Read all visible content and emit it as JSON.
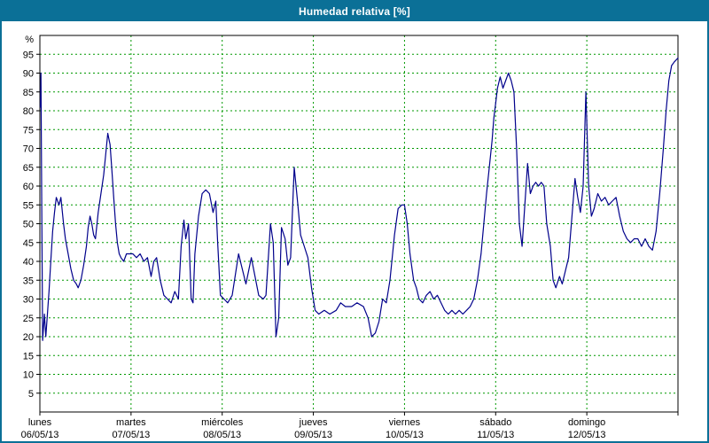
{
  "window": {
    "title": "Humedad relativa [%]"
  },
  "colors": {
    "header_bg": "#0b7097",
    "header_fg": "#ffffff",
    "frame": "#000000",
    "grid": "#009900",
    "line": "#00008b",
    "tick_text": "#000000",
    "plot_bg": "#ffffff"
  },
  "chart_data": {
    "type": "line",
    "title": "Humedad relativa [%]",
    "ylabel": "%",
    "ylim": [
      0,
      100
    ],
    "yticks": [
      5,
      10,
      15,
      20,
      25,
      30,
      35,
      40,
      45,
      50,
      55,
      60,
      65,
      70,
      75,
      80,
      85,
      90,
      95
    ],
    "grid": "dashed-green",
    "legend": "none",
    "days": [
      {
        "name": "lunes",
        "date": "06/05/13"
      },
      {
        "name": "martes",
        "date": "07/05/13"
      },
      {
        "name": "miércoles",
        "date": "08/05/13"
      },
      {
        "name": "jueves",
        "date": "09/05/13"
      },
      {
        "name": "viernes",
        "date": "10/05/13"
      },
      {
        "name": "sábado",
        "date": "11/05/13"
      },
      {
        "name": "domingo",
        "date": "12/05/13"
      }
    ],
    "series": [
      {
        "name": "Humedad relativa",
        "color": "#00008b",
        "x_days": [
          0.005,
          0.012,
          0.02,
          0.03,
          0.05,
          0.065,
          0.08,
          0.1,
          0.12,
          0.14,
          0.16,
          0.18,
          0.21,
          0.23,
          0.26,
          0.28,
          0.31,
          0.34,
          0.37,
          0.4,
          0.42,
          0.45,
          0.48,
          0.51,
          0.53,
          0.55,
          0.57,
          0.59,
          0.61,
          0.64,
          0.67,
          0.7,
          0.72,
          0.745,
          0.77,
          0.79,
          0.81,
          0.83,
          0.85,
          0.87,
          0.89,
          0.92,
          0.95,
          0.98,
          1.02,
          1.06,
          1.1,
          1.14,
          1.18,
          1.22,
          1.25,
          1.28,
          1.32,
          1.36,
          1.4,
          1.44,
          1.48,
          1.52,
          1.55,
          1.58,
          1.6,
          1.63,
          1.66,
          1.68,
          1.7,
          1.74,
          1.78,
          1.82,
          1.86,
          1.9,
          1.93,
          1.95,
          1.98,
          2.02,
          2.06,
          2.11,
          2.18,
          2.26,
          2.32,
          2.4,
          2.45,
          2.48,
          2.53,
          2.56,
          2.59,
          2.62,
          2.65,
          2.69,
          2.72,
          2.75,
          2.79,
          2.83,
          2.86,
          2.9,
          2.94,
          2.98,
          3.02,
          3.06,
          3.12,
          3.18,
          3.25,
          3.3,
          3.35,
          3.42,
          3.48,
          3.55,
          3.6,
          3.64,
          3.68,
          3.72,
          3.76,
          3.8,
          3.84,
          3.89,
          3.93,
          3.97,
          4.0,
          4.03,
          4.06,
          4.1,
          4.13,
          4.16,
          4.2,
          4.24,
          4.28,
          4.32,
          4.36,
          4.4,
          4.44,
          4.48,
          4.52,
          4.56,
          4.6,
          4.64,
          4.68,
          4.72,
          4.76,
          4.8,
          4.84,
          4.87,
          4.9,
          4.93,
          4.96,
          4.98,
          5.0,
          5.02,
          5.05,
          5.08,
          5.11,
          5.14,
          5.17,
          5.2,
          5.23,
          5.26,
          5.29,
          5.32,
          5.35,
          5.38,
          5.41,
          5.44,
          5.47,
          5.5,
          5.53,
          5.56,
          5.6,
          5.63,
          5.66,
          5.7,
          5.73,
          5.77,
          5.8,
          5.83,
          5.87,
          5.9,
          5.93,
          5.96,
          5.99,
          6.02,
          6.05,
          6.08,
          6.12,
          6.16,
          6.2,
          6.24,
          6.28,
          6.32,
          6.36,
          6.4,
          6.44,
          6.48,
          6.52,
          6.56,
          6.6,
          6.64,
          6.68,
          6.72,
          6.76,
          6.8,
          6.84,
          6.87,
          6.9,
          6.93,
          6.96,
          7.0
        ],
        "y": [
          81,
          90,
          55,
          19,
          26,
          20,
          25,
          32,
          40,
          48,
          53,
          57,
          55,
          57,
          50,
          46,
          42,
          38,
          35,
          34,
          33,
          35,
          39,
          44,
          49,
          52,
          50,
          47,
          46,
          53,
          58,
          63,
          68,
          74,
          71,
          64,
          57,
          50,
          45,
          42,
          41,
          40,
          42,
          42,
          42,
          41,
          42,
          40,
          41,
          36,
          40,
          41,
          35,
          31,
          30,
          29,
          32,
          30,
          44,
          51,
          46,
          50,
          30,
          29,
          42,
          52,
          58,
          59,
          58,
          53,
          56,
          45,
          31,
          30,
          29,
          31,
          42,
          34,
          41,
          31,
          30,
          31,
          50,
          45,
          20,
          25,
          49,
          46,
          39,
          41,
          65,
          55,
          47,
          44,
          41,
          33,
          27,
          26,
          27,
          26,
          27,
          29,
          28,
          28,
          29,
          28,
          25,
          20,
          21,
          24,
          30,
          29,
          35,
          47,
          54,
          55,
          55,
          50,
          42,
          35,
          33,
          30,
          29,
          31,
          32,
          30,
          31,
          29,
          27,
          26,
          27,
          26,
          27,
          26,
          27,
          28,
          30,
          35,
          42,
          50,
          58,
          65,
          72,
          78,
          82,
          86,
          89,
          86,
          88,
          90,
          88,
          85,
          70,
          50,
          44,
          55,
          66,
          58,
          60,
          61,
          60,
          61,
          60,
          50,
          44,
          35,
          33,
          36,
          34,
          38,
          41,
          50,
          62,
          57,
          53,
          60,
          85,
          60,
          52,
          54,
          58,
          56,
          57,
          55,
          56,
          57,
          52,
          48,
          46,
          45,
          46,
          46,
          44,
          46,
          44,
          43,
          48,
          58,
          70,
          80,
          88,
          92,
          93,
          94
        ]
      }
    ]
  }
}
